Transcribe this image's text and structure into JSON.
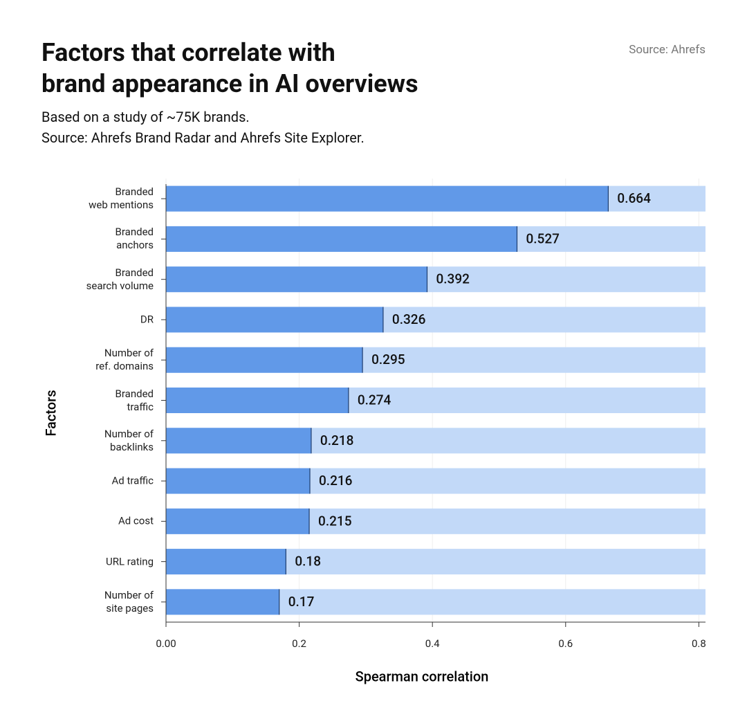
{
  "chart_data": {
    "type": "barh",
    "title": "Factors that correlate with\nbrand appearance in AI overviews",
    "subtitle": "Based on a study of ~75K brands.\nSource: Ahrefs Brand Radar and Ahrefs Site Explorer.",
    "source": "Source: Ahrefs",
    "x_label": "Spearman correlation",
    "y_label": "Factors",
    "categories": [
      "Branded\nweb mentions",
      "Branded\nanchors",
      "Branded\nsearch volume",
      "DR",
      "Number of\nref. domains",
      "Branded\ntraffic",
      "Number of\nbacklinks",
      "Ad traffic",
      "Ad cost",
      "URL rating",
      "Number of\nsite pages"
    ],
    "values": [
      0.664,
      0.527,
      0.392,
      0.326,
      0.295,
      0.274,
      0.218,
      0.216,
      0.215,
      0.18,
      0.17
    ],
    "color": "#6199e8",
    "track_color": "#c2d9f8",
    "xlim": [
      0,
      0.81
    ],
    "xticks": [
      {
        "value": 0,
        "label": "0.00"
      },
      0.2,
      0.4,
      0.6,
      0.8
    ],
    "grid": true
  }
}
